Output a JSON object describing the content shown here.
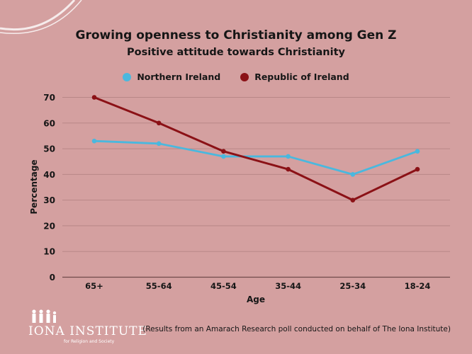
{
  "header": {
    "title": "Growing openness to Christianity among Gen Z",
    "subtitle": "Positive attitude towards Christianity"
  },
  "legend": {
    "items": [
      {
        "label": "Northern Ireland",
        "color": "#4ab8de"
      },
      {
        "label": "Republic of Ireland",
        "color": "#8b1116"
      }
    ]
  },
  "chart_data": {
    "type": "line",
    "title": "Growing openness to Christianity among Gen Z",
    "subtitle": "Positive attitude towards Christianity",
    "xlabel": "Age",
    "ylabel": "Percentage",
    "categories": [
      "65+",
      "55-64",
      "45-54",
      "35-44",
      "25-34",
      "18-24"
    ],
    "ylim": [
      0,
      70
    ],
    "yticks": [
      0,
      10,
      20,
      30,
      40,
      50,
      60,
      70
    ],
    "grid": true,
    "legend_position": "top",
    "series": [
      {
        "name": "Northern Ireland",
        "color": "#4ab8de",
        "values": [
          53,
          52,
          47,
          47,
          40,
          49
        ]
      },
      {
        "name": "Republic of Ireland",
        "color": "#8b1116",
        "values": [
          70,
          60,
          49,
          42,
          30,
          42
        ]
      }
    ]
  },
  "footer": {
    "logo_name": "IONA INSTITUTE",
    "logo_subtitle": "for Religion and Society",
    "note": "(Results from an Amarach Research poll conducted on behalf of The Iona Institute)"
  }
}
